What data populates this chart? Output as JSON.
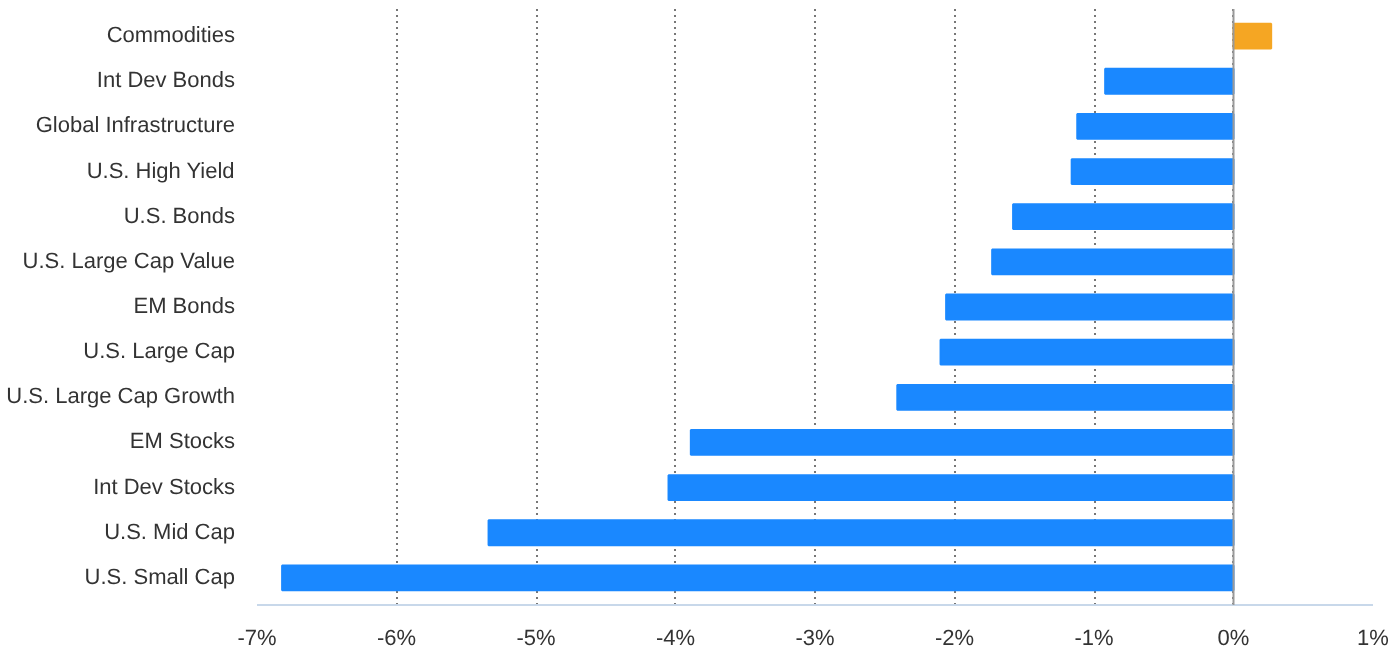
{
  "chart_data": {
    "type": "bar",
    "orientation": "horizontal",
    "categories": [
      "Commodities",
      "Int Dev Bonds",
      "Global Infrastructure",
      "U.S. High Yield",
      "U.S. Bonds",
      "U.S. Large Cap Value",
      "EM Bonds",
      "U.S. Large Cap",
      "U.S. Large Cap Growth",
      "EM Stocks",
      "Int Dev Stocks",
      "U.S. Mid Cap",
      "U.S. Small Cap"
    ],
    "values": [
      0.27,
      -0.92,
      -1.12,
      -1.16,
      -1.58,
      -1.73,
      -2.06,
      -2.1,
      -2.41,
      -3.89,
      -4.05,
      -5.34,
      -6.82
    ],
    "colors": [
      "#f5a623",
      "#1a88ff",
      "#1a88ff",
      "#1a88ff",
      "#1a88ff",
      "#1a88ff",
      "#1a88ff",
      "#1a88ff",
      "#1a88ff",
      "#1a88ff",
      "#1a88ff",
      "#1a88ff",
      "#1a88ff"
    ],
    "xlim": [
      -7,
      1
    ],
    "xticks": [
      {
        "value": -7,
        "label": "-7%"
      },
      {
        "value": -6,
        "label": "-6%"
      },
      {
        "value": -5,
        "label": "-5%"
      },
      {
        "value": -4,
        "label": "-4%"
      },
      {
        "value": -3,
        "label": "-3%"
      },
      {
        "value": -2,
        "label": "-2%"
      },
      {
        "value": -1,
        "label": "-1%"
      },
      {
        "value": 0,
        "label": "0%"
      },
      {
        "value": 1,
        "label": "1%"
      }
    ],
    "grid": "x"
  }
}
